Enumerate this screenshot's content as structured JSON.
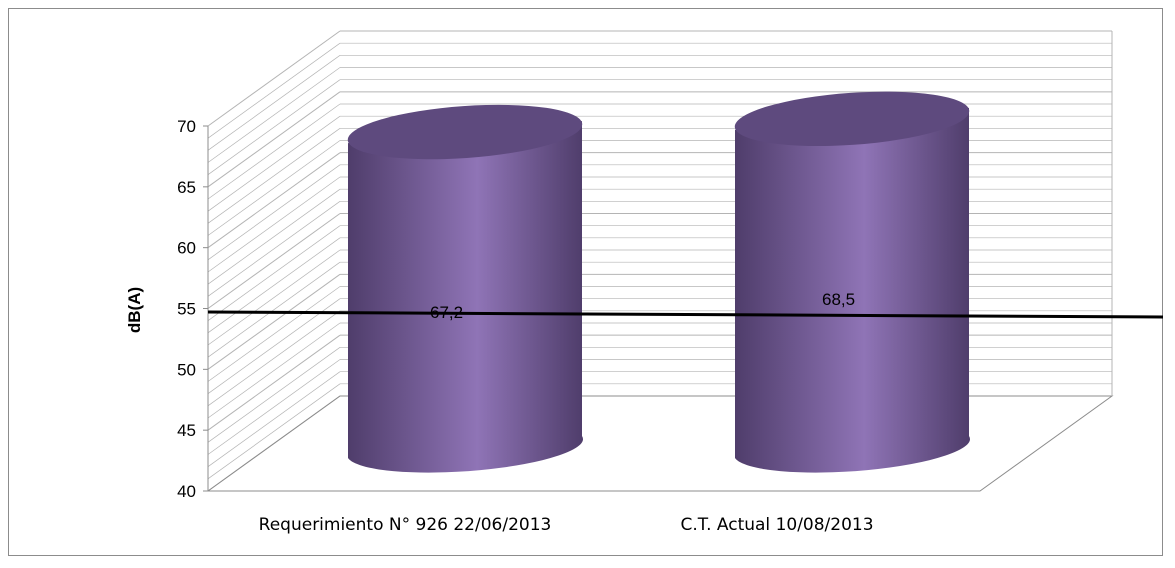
{
  "chart_data": {
    "type": "bar",
    "style": "3d-cylinder",
    "categories": [
      "Requerimiento N° 926  22/06/2013",
      "C.T. Actual 10/08/2013"
    ],
    "values": [
      67.2,
      68.5
    ],
    "data_labels": [
      "67,2",
      "68,5"
    ],
    "ylabel": "dB(A)",
    "xlabel": "",
    "ylim": [
      40,
      70
    ],
    "yticks": [
      40,
      45,
      50,
      55,
      60,
      65,
      70
    ],
    "grid": true,
    "reference_line": 55,
    "legend": "none",
    "colors": {
      "bar_main": "#8064a2",
      "bar_top": "#5e4a7e",
      "bar_light": "#8f74b6",
      "bar_dark": "#4f3d6b",
      "grid": "#b4b4b4",
      "axis": "#8c8c8c",
      "reference_line": "#000000",
      "text": "#000000"
    }
  }
}
